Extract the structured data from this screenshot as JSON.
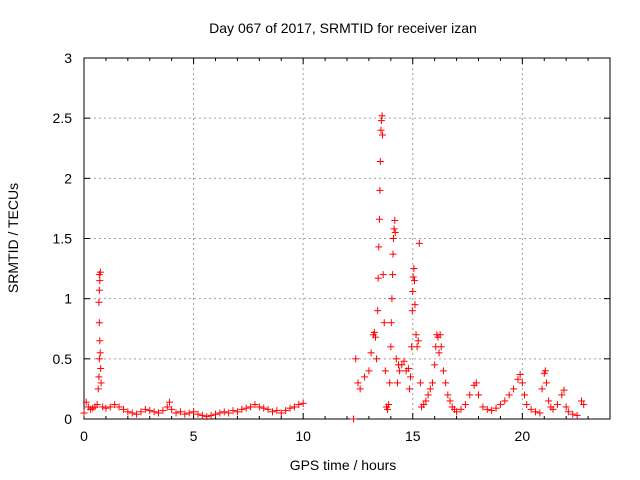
{
  "chart_data": {
    "type": "scatter",
    "title": "Day 067 of 2017, SRMTID for receiver izan",
    "xlabel": "GPS time / hours",
    "ylabel": "SRMTID / TECUs",
    "xlim": [
      0,
      24
    ],
    "ylim": [
      0,
      3
    ],
    "x_ticks": [
      "0",
      "5",
      "10",
      "15",
      "20"
    ],
    "y_ticks": [
      "0",
      "0.5",
      "1",
      "1.5",
      "2",
      "2.5",
      "3"
    ],
    "grid": true,
    "marker": "plus",
    "color": "#ff0000",
    "series": [
      {
        "name": "SRMTID",
        "points": [
          [
            0.0,
            0.05
          ],
          [
            0.1,
            0.14
          ],
          [
            0.2,
            0.1
          ],
          [
            0.3,
            0.08
          ],
          [
            0.4,
            0.09
          ],
          [
            0.5,
            0.1
          ],
          [
            0.6,
            0.12
          ],
          [
            0.65,
            0.25
          ],
          [
            0.68,
            0.35
          ],
          [
            0.7,
            0.5
          ],
          [
            0.72,
            0.65
          ],
          [
            0.7,
            0.8
          ],
          [
            0.68,
            0.97
          ],
          [
            0.7,
            1.07
          ],
          [
            0.72,
            1.15
          ],
          [
            0.7,
            1.2
          ],
          [
            0.75,
            1.22
          ],
          [
            0.74,
            0.55
          ],
          [
            0.76,
            0.42
          ],
          [
            0.78,
            0.3
          ],
          [
            0.85,
            0.1
          ],
          [
            1.0,
            0.09
          ],
          [
            1.2,
            0.1
          ],
          [
            1.4,
            0.12
          ],
          [
            1.6,
            0.1
          ],
          [
            1.8,
            0.08
          ],
          [
            2.0,
            0.06
          ],
          [
            2.2,
            0.05
          ],
          [
            2.4,
            0.04
          ],
          [
            2.6,
            0.06
          ],
          [
            2.8,
            0.08
          ],
          [
            3.0,
            0.07
          ],
          [
            3.2,
            0.06
          ],
          [
            3.4,
            0.05
          ],
          [
            3.6,
            0.07
          ],
          [
            3.8,
            0.1
          ],
          [
            3.9,
            0.14
          ],
          [
            4.0,
            0.08
          ],
          [
            4.2,
            0.05
          ],
          [
            4.4,
            0.06
          ],
          [
            4.6,
            0.04
          ],
          [
            4.8,
            0.05
          ],
          [
            5.0,
            0.06
          ],
          [
            5.2,
            0.04
          ],
          [
            5.4,
            0.03
          ],
          [
            5.6,
            0.02
          ],
          [
            5.8,
            0.03
          ],
          [
            6.0,
            0.04
          ],
          [
            6.2,
            0.05
          ],
          [
            6.4,
            0.06
          ],
          [
            6.6,
            0.05
          ],
          [
            6.8,
            0.07
          ],
          [
            7.0,
            0.06
          ],
          [
            7.2,
            0.08
          ],
          [
            7.4,
            0.09
          ],
          [
            7.6,
            0.1
          ],
          [
            7.8,
            0.12
          ],
          [
            8.0,
            0.1
          ],
          [
            8.2,
            0.09
          ],
          [
            8.4,
            0.08
          ],
          [
            8.6,
            0.06
          ],
          [
            8.8,
            0.07
          ],
          [
            9.0,
            0.05
          ],
          [
            9.2,
            0.07
          ],
          [
            9.4,
            0.09
          ],
          [
            9.6,
            0.1
          ],
          [
            9.8,
            0.12
          ],
          [
            10.0,
            0.13
          ],
          [
            12.3,
            0.0
          ],
          [
            12.4,
            0.5
          ],
          [
            12.5,
            0.3
          ],
          [
            12.6,
            0.25
          ],
          [
            12.8,
            0.35
          ],
          [
            13.0,
            0.4
          ],
          [
            13.1,
            0.55
          ],
          [
            13.2,
            0.7
          ],
          [
            13.25,
            0.72
          ],
          [
            13.3,
            0.68
          ],
          [
            13.35,
            0.5
          ],
          [
            13.4,
            0.9
          ],
          [
            13.42,
            1.17
          ],
          [
            13.45,
            1.43
          ],
          [
            13.48,
            1.66
          ],
          [
            13.5,
            1.9
          ],
          [
            13.52,
            2.14
          ],
          [
            13.55,
            2.4
          ],
          [
            13.57,
            2.48
          ],
          [
            13.6,
            2.52
          ],
          [
            13.62,
            2.36
          ],
          [
            13.65,
            1.2
          ],
          [
            13.7,
            0.8
          ],
          [
            13.75,
            0.4
          ],
          [
            13.8,
            0.1
          ],
          [
            13.85,
            0.08
          ],
          [
            13.9,
            0.12
          ],
          [
            13.95,
            0.3
          ],
          [
            14.0,
            0.6
          ],
          [
            14.02,
            0.8
          ],
          [
            14.05,
            1.0
          ],
          [
            14.08,
            1.2
          ],
          [
            14.1,
            1.37
          ],
          [
            14.12,
            1.5
          ],
          [
            14.15,
            1.58
          ],
          [
            14.18,
            1.65
          ],
          [
            14.2,
            1.55
          ],
          [
            14.25,
            0.5
          ],
          [
            14.3,
            0.3
          ],
          [
            14.35,
            0.45
          ],
          [
            14.4,
            0.4
          ],
          [
            14.5,
            0.45
          ],
          [
            14.6,
            0.48
          ],
          [
            14.7,
            0.4
          ],
          [
            14.8,
            0.42
          ],
          [
            14.85,
            0.25
          ],
          [
            14.9,
            0.35
          ],
          [
            14.95,
            0.6
          ],
          [
            14.98,
            0.9
          ],
          [
            15.0,
            1.06
          ],
          [
            15.02,
            1.18
          ],
          [
            15.05,
            1.25
          ],
          [
            15.08,
            1.15
          ],
          [
            15.1,
            0.95
          ],
          [
            15.15,
            0.7
          ],
          [
            15.2,
            0.6
          ],
          [
            15.25,
            0.65
          ],
          [
            15.3,
            1.46
          ],
          [
            15.35,
            0.3
          ],
          [
            15.4,
            0.1
          ],
          [
            15.5,
            0.12
          ],
          [
            15.6,
            0.15
          ],
          [
            15.7,
            0.2
          ],
          [
            15.8,
            0.25
          ],
          [
            15.9,
            0.3
          ],
          [
            16.0,
            0.45
          ],
          [
            16.05,
            0.6
          ],
          [
            16.1,
            0.7
          ],
          [
            16.15,
            0.68
          ],
          [
            16.2,
            0.55
          ],
          [
            16.25,
            0.7
          ],
          [
            16.3,
            0.6
          ],
          [
            16.4,
            0.4
          ],
          [
            16.5,
            0.3
          ],
          [
            16.6,
            0.2
          ],
          [
            16.7,
            0.15
          ],
          [
            16.8,
            0.1
          ],
          [
            16.9,
            0.08
          ],
          [
            17.0,
            0.06
          ],
          [
            17.2,
            0.08
          ],
          [
            17.4,
            0.12
          ],
          [
            17.6,
            0.2
          ],
          [
            17.8,
            0.28
          ],
          [
            17.9,
            0.3
          ],
          [
            18.0,
            0.2
          ],
          [
            18.2,
            0.1
          ],
          [
            18.4,
            0.08
          ],
          [
            18.6,
            0.07
          ],
          [
            18.8,
            0.09
          ],
          [
            19.0,
            0.12
          ],
          [
            19.2,
            0.15
          ],
          [
            19.4,
            0.2
          ],
          [
            19.6,
            0.25
          ],
          [
            19.8,
            0.33
          ],
          [
            19.9,
            0.37
          ],
          [
            20.0,
            0.3
          ],
          [
            20.1,
            0.2
          ],
          [
            20.2,
            0.12
          ],
          [
            20.4,
            0.08
          ],
          [
            20.6,
            0.06
          ],
          [
            20.8,
            0.05
          ],
          [
            20.9,
            0.25
          ],
          [
            21.0,
            0.38
          ],
          [
            21.05,
            0.4
          ],
          [
            21.1,
            0.3
          ],
          [
            21.2,
            0.15
          ],
          [
            21.3,
            0.1
          ],
          [
            21.4,
            0.08
          ],
          [
            21.6,
            0.12
          ],
          [
            21.8,
            0.2
          ],
          [
            21.9,
            0.24
          ],
          [
            22.0,
            0.1
          ],
          [
            22.1,
            0.06
          ],
          [
            22.3,
            0.04
          ],
          [
            22.5,
            0.03
          ],
          [
            22.7,
            0.15
          ],
          [
            22.8,
            0.12
          ]
        ]
      }
    ]
  }
}
